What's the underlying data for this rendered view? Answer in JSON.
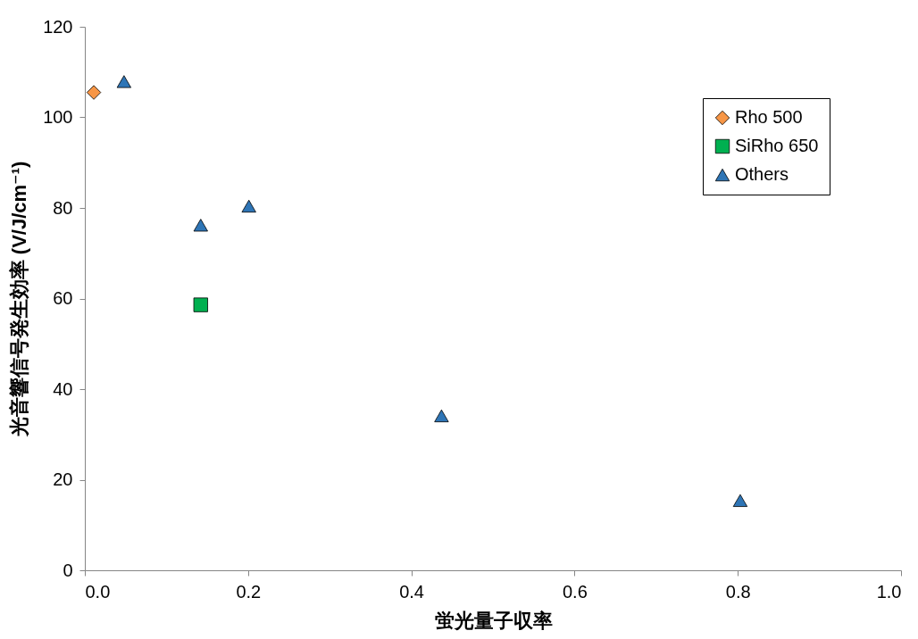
{
  "chart_data": {
    "type": "scatter",
    "xlabel": "蛍光量子収率",
    "ylabel": "光音響信号発生効率 (V/J/cm⁻¹)",
    "series": [
      {
        "name": "Rho 500",
        "color": "#f79646",
        "marker": "diamond",
        "x": [
          0.011
        ],
        "values": [
          105.5
        ]
      },
      {
        "name": "SiRho 650",
        "color": "#00b050",
        "marker": "square",
        "x": [
          0.142
        ],
        "values": [
          58.6
        ]
      },
      {
        "name": "Others",
        "color": "#2e75b6",
        "marker": "triangle",
        "x": [
          0.048,
          0.142,
          0.201,
          0.437,
          0.803
        ],
        "values": [
          107.9,
          76.2,
          80.4,
          34.1,
          15.4
        ]
      }
    ],
    "xlim": [
      0,
      1
    ],
    "xticks": [
      {
        "value": 0,
        "label": "0.0"
      },
      {
        "value": 0.2,
        "label": "0.2"
      },
      {
        "value": 0.4,
        "label": "0.4"
      },
      {
        "value": 0.6,
        "label": "0.6"
      },
      {
        "value": 0.8,
        "label": "0.8"
      },
      {
        "value": 1,
        "label": "1.0"
      }
    ],
    "ylim": [
      0,
      120
    ],
    "yticks": [
      0,
      20,
      40,
      60,
      80,
      100,
      120
    ],
    "grid": false,
    "legend": "top right"
  }
}
